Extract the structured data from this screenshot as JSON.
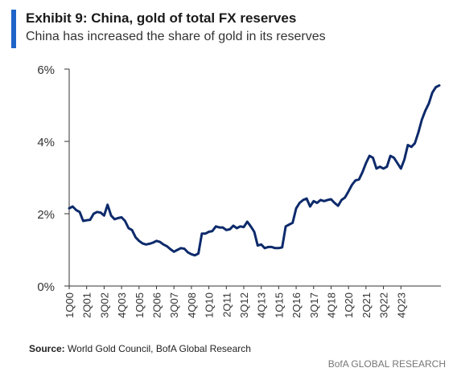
{
  "header": {
    "title": "Exhibit 9: China, gold of total FX reserves",
    "subtitle": "China has increased the share of gold in its reserves"
  },
  "footer": {
    "source_label": "Source:",
    "source_text": "World Gold Council, BofA Global Research",
    "brand": "BofA GLOBAL RESEARCH"
  },
  "colors": {
    "accent": "#1f64c8",
    "line": "#0d2a6b",
    "axis": "#333333"
  },
  "chart_data": {
    "type": "line",
    "title": "Exhibit 9: China, gold of total FX reserves",
    "subtitle": "China has increased the share of gold in its reserves",
    "ylim": [
      0,
      6
    ],
    "y_ticks": [
      "0%",
      "2%",
      "4%",
      "6%"
    ],
    "grid": false,
    "x_tick_labels": [
      "1Q00",
      "2Q01",
      "3Q02",
      "4Q03",
      "1Q05",
      "2Q06",
      "3Q07",
      "4Q08",
      "1Q10",
      "2Q11",
      "3Q12",
      "4Q13",
      "1Q15",
      "2Q16",
      "3Q17",
      "4Q18",
      "1Q20",
      "2Q21",
      "3Q22",
      "4Q23"
    ],
    "series": [
      {
        "values": [
          2.15,
          2.2,
          2.1,
          2.05,
          1.8,
          1.82,
          1.83,
          2.0,
          2.05,
          2.03,
          1.95,
          2.25,
          1.95,
          1.85,
          1.88,
          1.9,
          1.8,
          1.6,
          1.55,
          1.35,
          1.25,
          1.18,
          1.15,
          1.17,
          1.2,
          1.25,
          1.22,
          1.15,
          1.1,
          1.02,
          0.95,
          1.0,
          1.05,
          1.03,
          0.93,
          0.88,
          0.85,
          0.9,
          1.45,
          1.45,
          1.5,
          1.52,
          1.65,
          1.62,
          1.62,
          1.55,
          1.57,
          1.67,
          1.6,
          1.65,
          1.63,
          1.78,
          1.65,
          1.5,
          1.12,
          1.15,
          1.05,
          1.08,
          1.08,
          1.05,
          1.05,
          1.07,
          1.65,
          1.7,
          1.75,
          2.15,
          2.3,
          2.38,
          2.42,
          2.2,
          2.35,
          2.3,
          2.38,
          2.35,
          2.38,
          2.4,
          2.3,
          2.22,
          2.38,
          2.45,
          2.62,
          2.8,
          2.92,
          2.95,
          3.15,
          3.4,
          3.6,
          3.55,
          3.25,
          3.3,
          3.25,
          3.3,
          3.6,
          3.55,
          3.4,
          3.25,
          3.5,
          3.9,
          3.85,
          3.95,
          4.25,
          4.6,
          4.85,
          5.05,
          5.35,
          5.5,
          5.55
        ]
      }
    ]
  }
}
